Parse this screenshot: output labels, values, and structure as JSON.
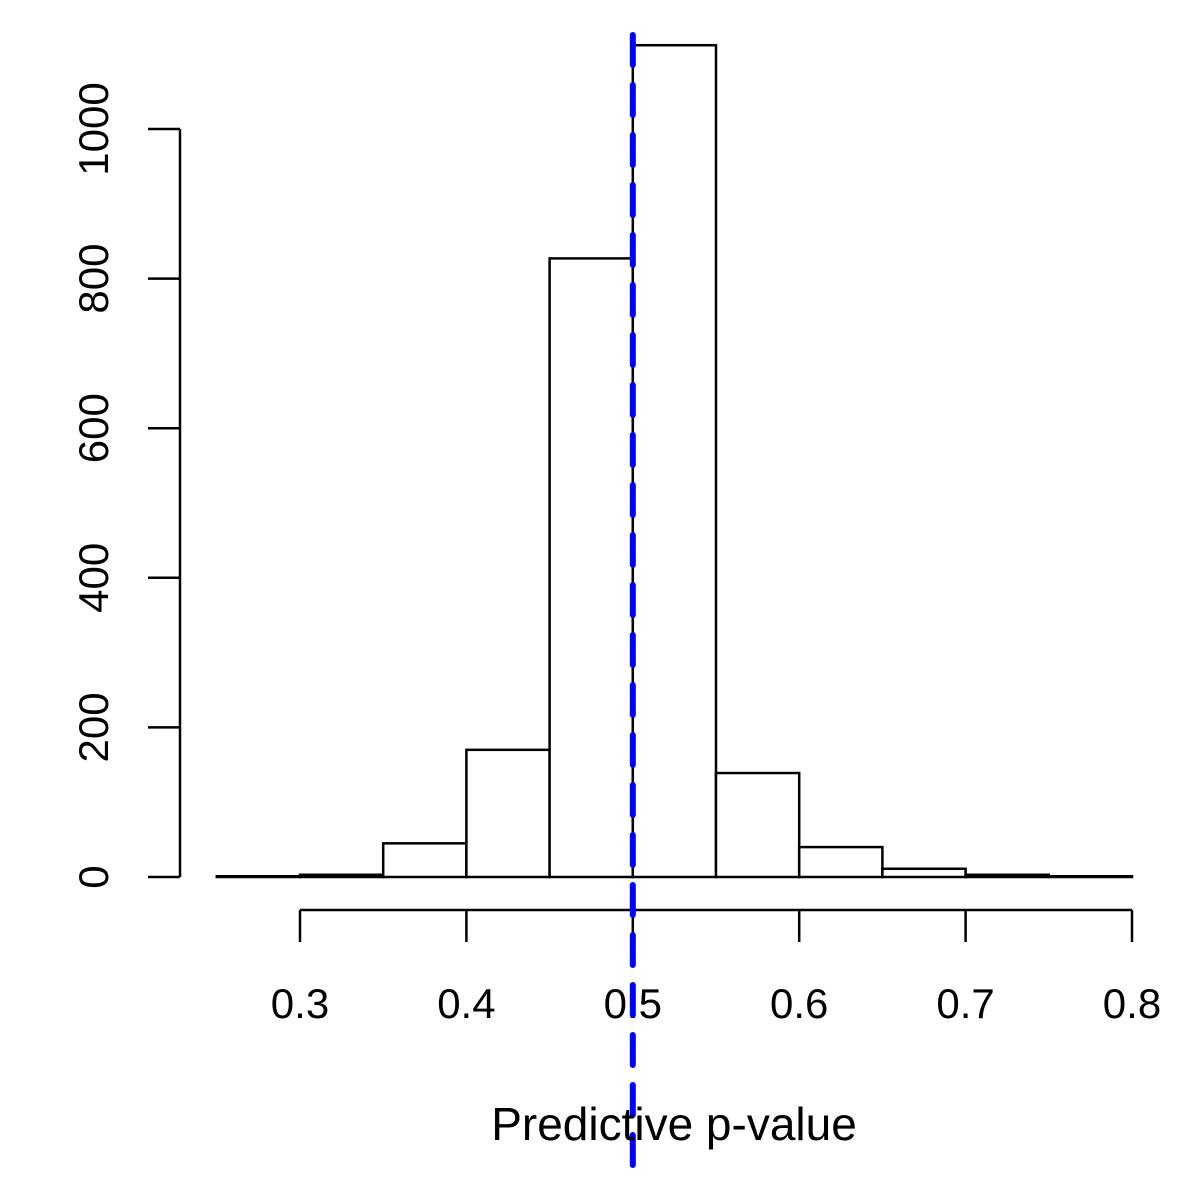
{
  "chart_data": {
    "type": "bar",
    "title": "",
    "xlabel": "Predictive p-value",
    "ylabel": "",
    "bin_edges": [
      0.25,
      0.3,
      0.35,
      0.4,
      0.45,
      0.5,
      0.55,
      0.6,
      0.65,
      0.7,
      0.75,
      0.8
    ],
    "values": [
      1,
      3,
      45,
      170,
      827,
      1112,
      139,
      40,
      11,
      3,
      1
    ],
    "xlim": [
      0.25,
      0.8
    ],
    "ylim": [
      0,
      1120
    ],
    "xticks": [
      0.3,
      0.4,
      0.5,
      0.6,
      0.7,
      0.8
    ],
    "xtick_labels": [
      "0.3",
      "0.4",
      "0.5",
      "0.6",
      "0.7",
      "0.8"
    ],
    "yticks": [
      0,
      200,
      400,
      600,
      800,
      1000
    ],
    "ytick_labels": [
      "0",
      "200",
      "400",
      "600",
      "800",
      "1000"
    ],
    "reference_line": {
      "x": 0.5,
      "color": "#0000ff",
      "style": "dashed"
    },
    "grid": false
  }
}
